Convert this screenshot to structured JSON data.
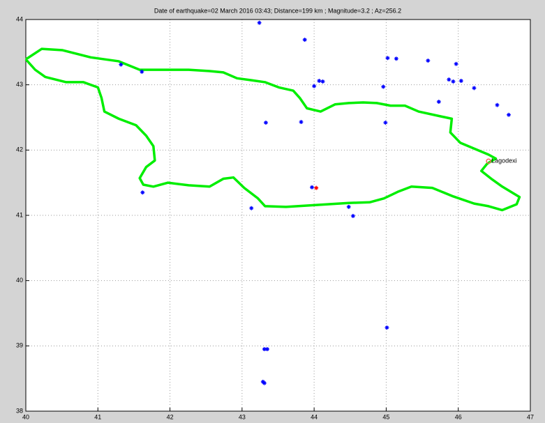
{
  "chart_data": {
    "type": "scatter",
    "title": "Date of earthquake=02 March 2016 03:43; Distance=199 km ; Magnitude=3.2 ; Az=256.2",
    "xlim": [
      40,
      47
    ],
    "ylim": [
      38,
      44
    ],
    "xticks": [
      40,
      41,
      42,
      43,
      44,
      45,
      46,
      47
    ],
    "yticks": [
      38,
      39,
      40,
      41,
      42,
      43,
      44
    ],
    "grid": true,
    "series": [
      {
        "style": "line",
        "color": "#00ee00",
        "x": [
          40.0,
          40.22,
          40.51,
          40.9,
          41.29,
          41.58,
          41.97,
          42.26,
          42.55,
          42.74,
          42.93,
          43.13,
          43.32,
          43.51,
          43.71,
          43.8,
          43.9,
          44.09,
          44.29,
          44.48,
          44.68,
          44.87,
          45.06,
          45.26,
          45.45,
          45.74,
          45.91,
          45.89,
          46.03,
          46.42,
          46.52,
          46.4,
          46.32,
          46.47,
          46.61,
          46.85,
          46.81,
          46.61,
          46.42,
          46.22,
          45.93,
          45.64,
          45.35,
          45.16,
          44.97,
          44.77,
          44.48,
          44.19,
          43.9,
          43.61,
          43.32,
          43.22,
          43.03,
          42.88,
          42.74,
          42.55,
          42.26,
          41.97,
          41.77,
          41.63,
          41.58,
          41.67,
          41.79,
          41.77,
          41.67,
          41.53,
          41.29,
          41.09,
          41.05,
          41.0,
          40.8,
          40.56,
          40.27,
          40.13,
          40.0
        ],
        "y": [
          43.39,
          43.55,
          43.53,
          43.42,
          43.36,
          43.23,
          43.23,
          43.23,
          43.21,
          43.19,
          43.1,
          43.07,
          43.04,
          42.96,
          42.91,
          42.8,
          42.64,
          42.59,
          42.7,
          42.72,
          42.73,
          42.72,
          42.68,
          42.68,
          42.59,
          42.52,
          42.48,
          42.27,
          42.11,
          41.93,
          41.87,
          41.79,
          41.68,
          41.55,
          41.44,
          41.28,
          41.17,
          41.08,
          41.14,
          41.18,
          41.29,
          41.42,
          41.44,
          41.36,
          41.26,
          41.2,
          41.19,
          41.17,
          41.15,
          41.13,
          41.14,
          41.26,
          41.42,
          41.58,
          41.56,
          41.44,
          41.46,
          41.5,
          41.44,
          41.47,
          41.57,
          41.74,
          41.84,
          42.06,
          42.22,
          42.38,
          42.48,
          42.59,
          42.8,
          42.96,
          43.04,
          43.04,
          43.12,
          43.23,
          43.39
        ]
      },
      {
        "style": "star",
        "color": "#0000ff",
        "x": [
          43.24,
          43.87,
          41.32,
          41.61,
          45.02,
          45.14,
          45.58,
          45.97,
          45.87,
          45.93,
          46.04,
          46.22,
          44.07,
          44.12,
          44.0,
          44.96,
          45.73,
          46.54,
          46.7,
          43.33,
          43.82,
          44.99,
          41.62,
          43.97,
          43.13,
          44.48,
          44.54,
          45.01,
          43.31,
          43.35,
          43.29,
          43.31
        ],
        "y": [
          43.95,
          43.69,
          43.31,
          43.2,
          43.41,
          43.4,
          43.37,
          43.32,
          43.08,
          43.05,
          43.06,
          42.95,
          43.06,
          43.05,
          42.98,
          42.97,
          42.74,
          42.69,
          42.54,
          42.42,
          42.43,
          42.42,
          41.35,
          41.43,
          41.11,
          41.13,
          40.99,
          39.28,
          38.95,
          38.95,
          38.45,
          38.43
        ]
      },
      {
        "style": "star",
        "color": "#ff0000",
        "x": [
          44.03
        ],
        "y": [
          41.42
        ]
      },
      {
        "style": "circle",
        "color": "#ff6060",
        "x": [
          46.42
        ],
        "y": [
          41.83
        ],
        "labels": [
          "Lagodexi"
        ]
      }
    ]
  }
}
